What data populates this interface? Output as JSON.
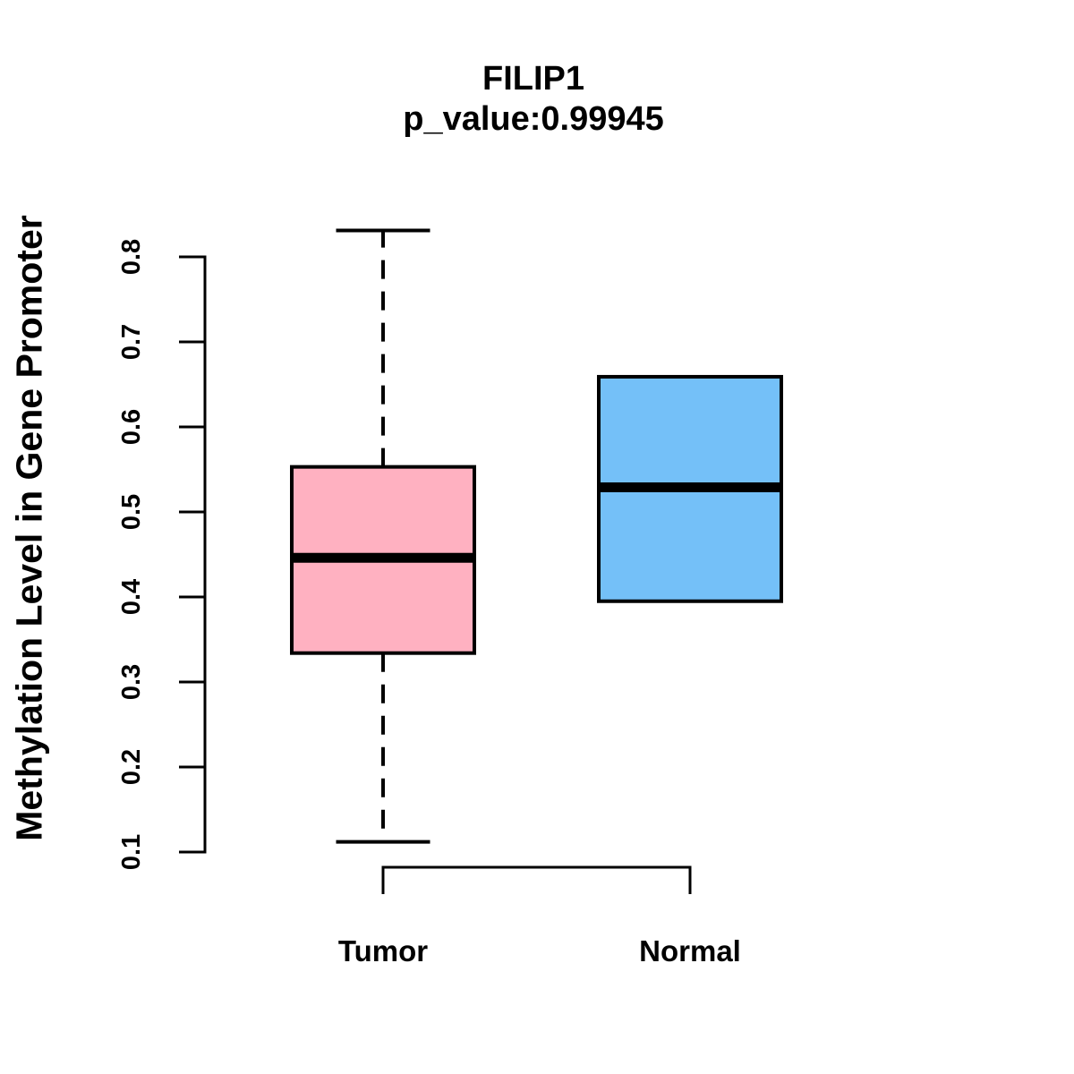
{
  "page": {
    "background": "#FFFFFF",
    "text_color": "#000000"
  },
  "chart_data": {
    "type": "boxplot",
    "title": "FILIP1",
    "subtitle": "p_value:0.99945",
    "ylabel": "Methylation Level in Gene Promoter",
    "xlabel": "",
    "categories": [
      "Tumor",
      "Normal"
    ],
    "yaxis": {
      "min": 0.1,
      "max": 0.8,
      "ticks": [
        {
          "value": 0.1,
          "label": "0.1"
        },
        {
          "value": 0.2,
          "label": "0.2"
        },
        {
          "value": 0.3,
          "label": "0.3"
        },
        {
          "value": 0.4,
          "label": "0.4"
        },
        {
          "value": 0.5,
          "label": "0.5"
        },
        {
          "value": 0.6,
          "label": "0.6"
        },
        {
          "value": 0.7,
          "label": "0.7"
        },
        {
          "value": 0.8,
          "label": "0.8"
        }
      ]
    },
    "series": [
      {
        "name": "Tumor",
        "fill_color": "#FFB1C1",
        "whisker_low": 0.112,
        "q1": 0.334,
        "median": 0.446,
        "q3": 0.553,
        "whisker_high": 0.831
      },
      {
        "name": "Normal",
        "fill_color": "#74C0F8",
        "whisker_low": 0.395,
        "q1": 0.395,
        "median": 0.529,
        "q3": 0.659,
        "whisker_high": 0.659
      }
    ],
    "box_border_color": "#000000",
    "median_color": "#000000",
    "whisker_style": "dashed",
    "legend": "none",
    "grid": false
  }
}
